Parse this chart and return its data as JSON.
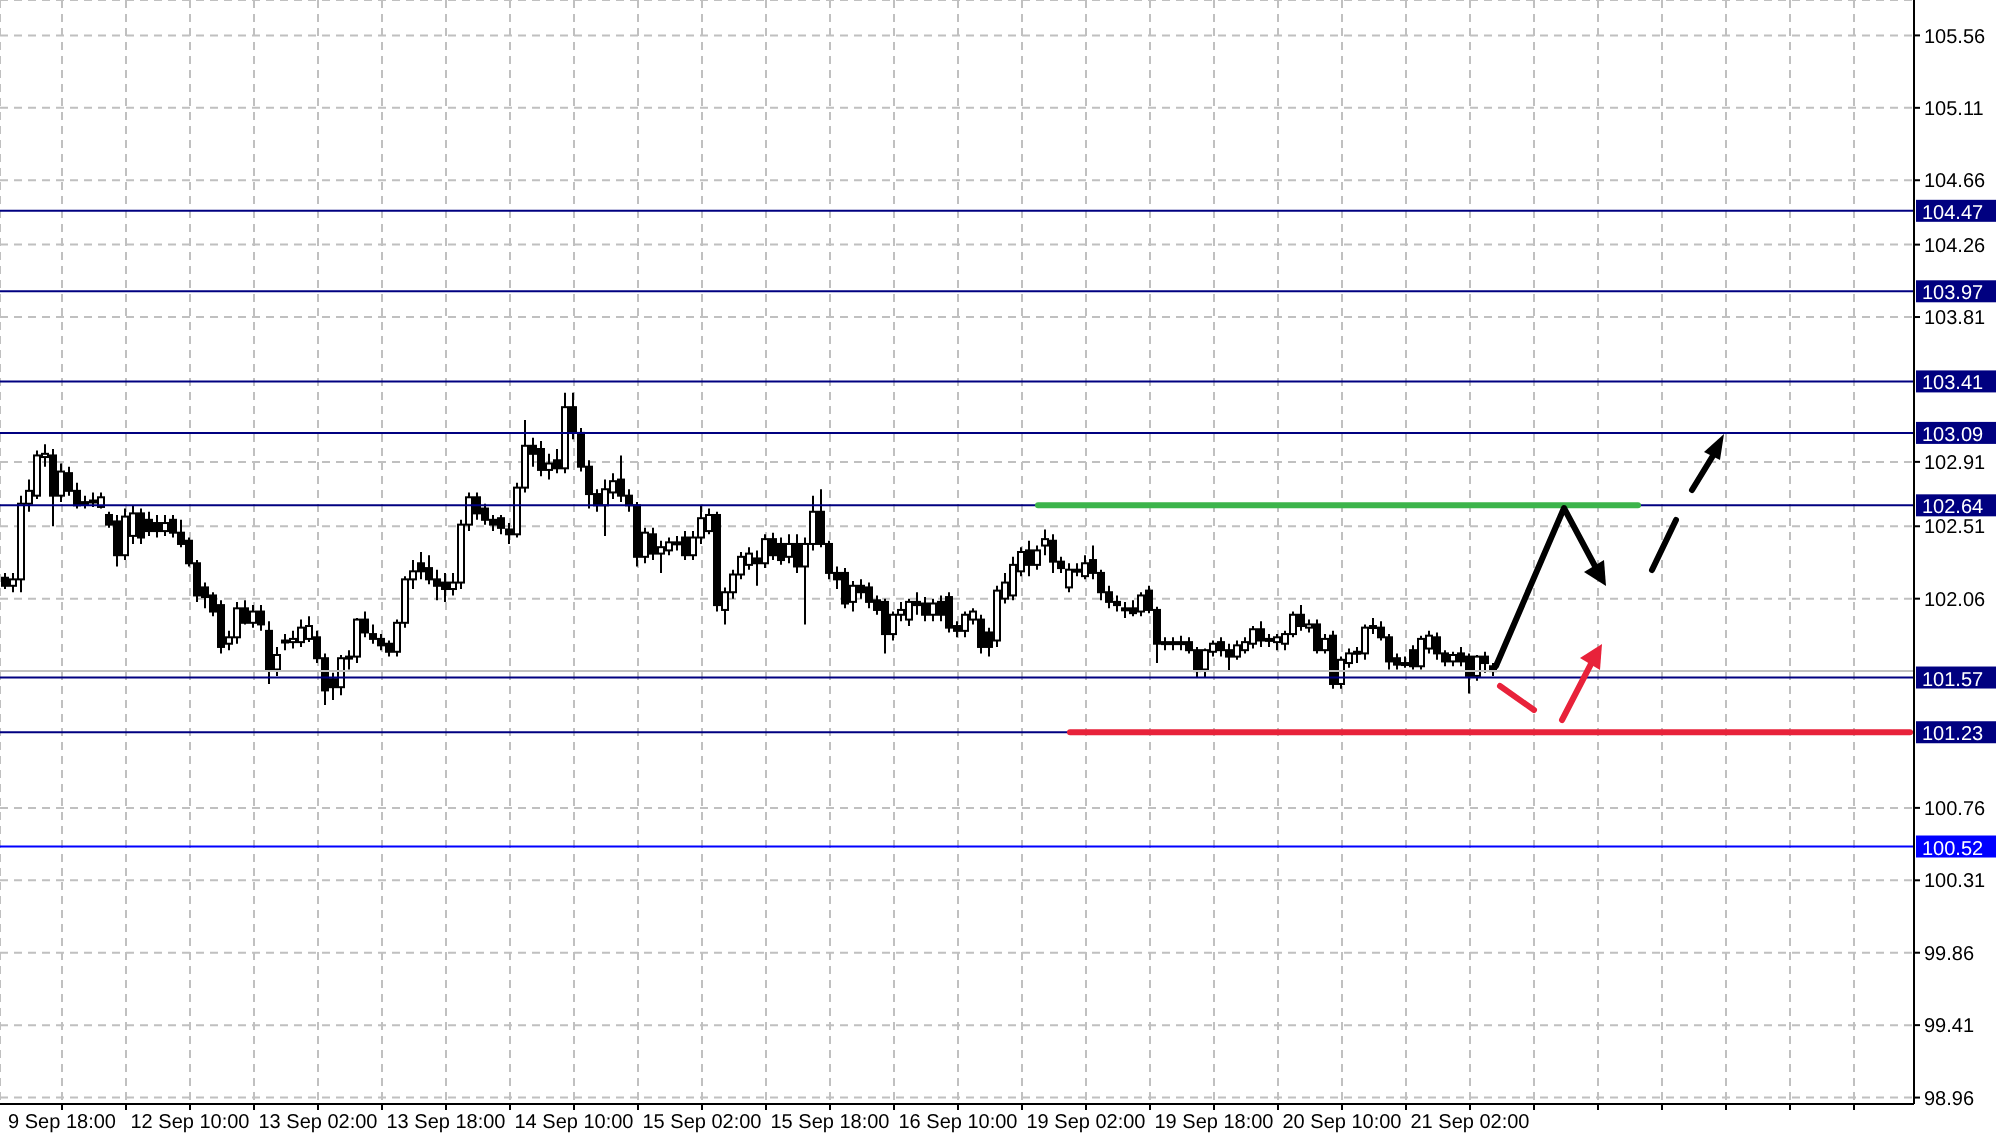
{
  "chart_data": {
    "type": "candlestick",
    "color": "#000000",
    "categories": [
      null,
      null,
      null,
      null,
      null,
      null,
      null,
      "9 Sep 18:00",
      null,
      null,
      null,
      null,
      null,
      null,
      null,
      null,
      null,
      null,
      null,
      null,
      null,
      null,
      null,
      "12 Sep 10:00",
      null,
      null,
      null,
      null,
      null,
      null,
      null,
      null,
      null,
      null,
      null,
      null,
      null,
      null,
      null,
      "13 Sep 02:00",
      null,
      null,
      null,
      null,
      null,
      null,
      null,
      null,
      null,
      null,
      null,
      null,
      null,
      null,
      null,
      "13 Sep 18:00",
      null,
      null,
      null,
      null,
      null,
      null,
      null,
      null,
      null,
      null,
      null,
      null,
      null,
      null,
      null,
      "14 Sep 10:00",
      null,
      null,
      null,
      null,
      null,
      null,
      null,
      null,
      null,
      null,
      null,
      null,
      null,
      null,
      null,
      "15 Sep 02:00",
      null,
      null,
      null,
      null,
      null,
      null,
      null,
      null,
      null,
      null,
      null,
      null,
      null,
      null,
      null,
      "15 Sep 18:00",
      null,
      null,
      null,
      null,
      null,
      null,
      null,
      null,
      null,
      null,
      null,
      null,
      null,
      null,
      null,
      "16 Sep 10:00",
      null,
      null,
      null,
      null,
      null,
      null,
      null,
      null,
      null,
      null,
      null,
      null,
      null,
      null,
      null,
      "19 Sep 02:00",
      null,
      null,
      null,
      null,
      null,
      null,
      null,
      null,
      null,
      null,
      null,
      null,
      null,
      null,
      null,
      "19 Sep 18:00",
      null,
      null,
      null,
      null,
      null,
      null,
      null,
      null,
      null,
      null,
      null,
      null,
      null,
      null,
      null,
      "20 Sep 10:00",
      null,
      null,
      null,
      null,
      null,
      null,
      null,
      null,
      null,
      null,
      null,
      null,
      null,
      null,
      null,
      "21 Sep 02:00",
      null,
      null,
      null,
      null,
      null,
      null,
      null,
      null,
      null,
      null,
      null,
      null,
      null,
      null,
      null,
      null,
      null,
      null,
      null,
      null,
      null,
      null,
      null,
      null,
      null,
      null,
      null,
      null,
      null,
      null,
      null,
      null,
      null,
      null,
      null,
      null,
      null,
      null,
      null,
      null,
      null,
      null,
      null,
      null,
      null,
      null,
      null,
      null,
      null,
      null,
      null,
      null,
      null,
      null,
      null
    ],
    "ohlc": [
      [
        102.19,
        102.22,
        102.12,
        102.14
      ],
      [
        102.14,
        102.22,
        102.1,
        102.18
      ],
      [
        102.18,
        102.7,
        102.1,
        102.65
      ],
      [
        102.65,
        102.8,
        102.6,
        102.73
      ],
      [
        102.7,
        102.98,
        102.68,
        102.95
      ],
      [
        102.94,
        103.02,
        102.88,
        102.96
      ],
      [
        102.95,
        102.99,
        102.51,
        102.7
      ],
      [
        102.7,
        102.9,
        102.66,
        102.85
      ],
      [
        102.84,
        102.88,
        102.7,
        102.73
      ],
      [
        102.73,
        102.78,
        102.62,
        102.64
      ],
      [
        102.66,
        102.7,
        102.62,
        102.65
      ],
      [
        102.66,
        102.72,
        102.63,
        102.67
      ],
      [
        102.63,
        102.72,
        102.62,
        102.69
      ],
      [
        102.58,
        102.6,
        102.5,
        102.52
      ],
      [
        102.54,
        102.58,
        102.26,
        102.33
      ],
      [
        102.33,
        102.62,
        102.3,
        102.57
      ],
      [
        102.45,
        102.64,
        102.4,
        102.59
      ],
      [
        102.59,
        102.62,
        102.4,
        102.44
      ],
      [
        102.55,
        102.6,
        102.45,
        102.48
      ],
      [
        102.53,
        102.58,
        102.44,
        102.48
      ],
      [
        102.48,
        102.58,
        102.45,
        102.53
      ],
      [
        102.55,
        102.58,
        102.44,
        102.47
      ],
      [
        102.47,
        102.55,
        102.38,
        102.4
      ],
      [
        102.42,
        102.44,
        102.26,
        102.28
      ],
      [
        102.28,
        102.3,
        102.04,
        102.08
      ],
      [
        102.13,
        102.16,
        102.0,
        102.07
      ],
      [
        102.08,
        102.1,
        101.95,
        101.98
      ],
      [
        102.02,
        102.05,
        101.72,
        101.76
      ],
      [
        101.78,
        101.86,
        101.74,
        101.82
      ],
      [
        101.82,
        102.04,
        101.78,
        102.0
      ],
      [
        102.0,
        102.05,
        101.9,
        101.91
      ],
      [
        101.91,
        102.02,
        101.88,
        101.98
      ],
      [
        101.98,
        102.02,
        101.86,
        101.9
      ],
      [
        101.86,
        101.92,
        101.53,
        101.62
      ],
      [
        101.62,
        101.76,
        101.58,
        101.71
      ],
      [
        101.8,
        101.84,
        101.74,
        101.79
      ],
      [
        101.79,
        101.86,
        101.75,
        101.81
      ],
      [
        101.79,
        101.93,
        101.76,
        101.88
      ],
      [
        101.81,
        101.95,
        101.79,
        101.89
      ],
      [
        101.82,
        101.86,
        101.66,
        101.69
      ],
      [
        101.69,
        101.72,
        101.4,
        101.49
      ],
      [
        101.56,
        101.6,
        101.43,
        101.51
      ],
      [
        101.51,
        101.71,
        101.46,
        101.69
      ],
      [
        101.69,
        101.74,
        101.62,
        101.7
      ],
      [
        101.7,
        101.94,
        101.66,
        101.93
      ],
      [
        101.93,
        101.98,
        101.82,
        101.85
      ],
      [
        101.84,
        101.9,
        101.78,
        101.81
      ],
      [
        101.81,
        101.84,
        101.74,
        101.77
      ],
      [
        101.78,
        101.8,
        101.7,
        101.73
      ],
      [
        101.73,
        101.93,
        101.7,
        101.91
      ],
      [
        101.91,
        102.2,
        101.88,
        102.18
      ],
      [
        102.18,
        102.3,
        102.12,
        102.23
      ],
      [
        102.28,
        102.35,
        102.18,
        102.23
      ],
      [
        102.25,
        102.33,
        102.15,
        102.18
      ],
      [
        102.18,
        102.24,
        102.05,
        102.14
      ],
      [
        102.16,
        102.22,
        102.04,
        102.12
      ],
      [
        102.12,
        102.22,
        102.08,
        102.16
      ],
      [
        102.16,
        102.55,
        102.12,
        102.52
      ],
      [
        102.52,
        102.72,
        102.48,
        102.69
      ],
      [
        102.69,
        102.72,
        102.55,
        102.59
      ],
      [
        102.62,
        102.65,
        102.52,
        102.55
      ],
      [
        102.55,
        102.58,
        102.48,
        102.52
      ],
      [
        102.56,
        102.58,
        102.46,
        102.5
      ],
      [
        102.49,
        102.53,
        102.4,
        102.46
      ],
      [
        102.46,
        102.78,
        102.44,
        102.75
      ],
      [
        102.75,
        103.17,
        102.72,
        103.01
      ],
      [
        103.01,
        103.06,
        102.88,
        102.96
      ],
      [
        102.99,
        103.04,
        102.82,
        102.86
      ],
      [
        102.86,
        102.96,
        102.8,
        102.9
      ],
      [
        102.92,
        102.99,
        102.84,
        102.87
      ],
      [
        102.87,
        103.34,
        102.84,
        103.25
      ],
      [
        103.25,
        103.34,
        103.05,
        103.09
      ],
      [
        103.09,
        103.12,
        102.85,
        102.88
      ],
      [
        102.88,
        102.92,
        102.62,
        102.71
      ],
      [
        102.71,
        102.74,
        102.6,
        102.64
      ],
      [
        102.64,
        102.8,
        102.45,
        102.74
      ],
      [
        102.72,
        102.84,
        102.68,
        102.79
      ],
      [
        102.8,
        102.95,
        102.66,
        102.7
      ],
      [
        102.7,
        102.74,
        102.6,
        102.64
      ],
      [
        102.64,
        102.66,
        102.26,
        102.32
      ],
      [
        102.32,
        102.5,
        102.28,
        102.47
      ],
      [
        102.46,
        102.5,
        102.3,
        102.34
      ],
      [
        102.34,
        102.42,
        102.22,
        102.38
      ],
      [
        102.36,
        102.44,
        102.33,
        102.41
      ],
      [
        102.4,
        102.45,
        102.36,
        102.41
      ],
      [
        102.44,
        102.48,
        102.3,
        102.33
      ],
      [
        102.33,
        102.48,
        102.3,
        102.44
      ],
      [
        102.44,
        102.64,
        102.4,
        102.56
      ],
      [
        102.48,
        102.62,
        102.46,
        102.58
      ],
      [
        102.58,
        102.6,
        101.98,
        102.02
      ],
      [
        101.99,
        102.13,
        101.9,
        102.1
      ],
      [
        102.1,
        102.24,
        102.06,
        102.21
      ],
      [
        102.21,
        102.35,
        102.18,
        102.32
      ],
      [
        102.27,
        102.38,
        102.24,
        102.34
      ],
      [
        102.31,
        102.36,
        102.14,
        102.28
      ],
      [
        102.28,
        102.46,
        102.25,
        102.43
      ],
      [
        102.43,
        102.47,
        102.3,
        102.33
      ],
      [
        102.4,
        102.44,
        102.27,
        102.3
      ],
      [
        102.32,
        102.46,
        102.28,
        102.4
      ],
      [
        102.4,
        102.46,
        102.22,
        102.26
      ],
      [
        102.26,
        102.44,
        101.9,
        102.4
      ],
      [
        102.4,
        102.7,
        102.36,
        102.6
      ],
      [
        102.6,
        102.74,
        102.38,
        102.4
      ],
      [
        102.4,
        102.42,
        102.18,
        102.22
      ],
      [
        102.22,
        102.26,
        102.12,
        102.18
      ],
      [
        102.22,
        102.25,
        102.0,
        102.03
      ],
      [
        102.04,
        102.17,
        101.98,
        102.14
      ],
      [
        102.14,
        102.18,
        102.06,
        102.1
      ],
      [
        102.13,
        102.16,
        102.0,
        102.04
      ],
      [
        102.05,
        102.08,
        101.96,
        101.99
      ],
      [
        102.04,
        102.06,
        101.72,
        101.84
      ],
      [
        101.84,
        101.98,
        101.8,
        101.96
      ],
      [
        101.96,
        102.04,
        101.92,
        101.99
      ],
      [
        101.93,
        102.06,
        101.89,
        102.04
      ],
      [
        102.04,
        102.1,
        101.96,
        102.02
      ],
      [
        102.03,
        102.07,
        101.92,
        101.96
      ],
      [
        101.96,
        102.06,
        101.92,
        102.03
      ],
      [
        102.04,
        102.08,
        101.92,
        101.96
      ],
      [
        102.07,
        102.1,
        101.85,
        101.88
      ],
      [
        101.89,
        101.92,
        101.82,
        101.86
      ],
      [
        101.86,
        101.98,
        101.82,
        101.96
      ],
      [
        101.93,
        102.0,
        101.9,
        101.98
      ],
      [
        101.93,
        101.96,
        101.72,
        101.76
      ],
      [
        101.85,
        101.88,
        101.7,
        101.76
      ],
      [
        101.8,
        102.14,
        101.76,
        102.11
      ],
      [
        102.06,
        102.22,
        102.03,
        102.16
      ],
      [
        102.08,
        102.32,
        102.05,
        102.27
      ],
      [
        102.23,
        102.38,
        102.2,
        102.35
      ],
      [
        102.36,
        102.42,
        102.2,
        102.27
      ],
      [
        102.27,
        102.39,
        102.24,
        102.36
      ],
      [
        102.39,
        102.49,
        102.33,
        102.43
      ],
      [
        102.42,
        102.46,
        102.22,
        102.29
      ],
      [
        102.29,
        102.32,
        102.22,
        102.25
      ],
      [
        102.13,
        102.28,
        102.1,
        102.24
      ],
      [
        102.24,
        102.28,
        102.2,
        102.24
      ],
      [
        102.2,
        102.33,
        102.18,
        102.28
      ],
      [
        102.3,
        102.39,
        102.18,
        102.22
      ],
      [
        102.22,
        102.24,
        102.05,
        102.1
      ],
      [
        102.1,
        102.14,
        102.0,
        102.04
      ],
      [
        102.04,
        102.08,
        101.98,
        102.02
      ],
      [
        102.0,
        102.04,
        101.94,
        101.99
      ],
      [
        102.0,
        102.05,
        101.95,
        101.97
      ],
      [
        101.98,
        102.1,
        101.95,
        102.08
      ],
      [
        102.11,
        102.14,
        101.97,
        101.99
      ],
      [
        101.99,
        102.01,
        101.66,
        101.78
      ],
      [
        101.78,
        101.82,
        101.74,
        101.79
      ],
      [
        101.79,
        101.82,
        101.74,
        101.78
      ],
      [
        101.78,
        101.83,
        101.74,
        101.79
      ],
      [
        101.79,
        101.82,
        101.72,
        101.74
      ],
      [
        101.74,
        101.76,
        101.57,
        101.61
      ],
      [
        101.62,
        101.75,
        101.57,
        101.74
      ],
      [
        101.73,
        101.8,
        101.7,
        101.78
      ],
      [
        101.79,
        101.82,
        101.7,
        101.74
      ],
      [
        101.74,
        101.78,
        101.61,
        101.7
      ],
      [
        101.7,
        101.8,
        101.68,
        101.77
      ],
      [
        101.74,
        101.82,
        101.72,
        101.79
      ],
      [
        101.78,
        101.89,
        101.75,
        101.87
      ],
      [
        101.87,
        101.92,
        101.76,
        101.8
      ],
      [
        101.8,
        101.84,
        101.76,
        101.81
      ],
      [
        101.79,
        101.84,
        101.74,
        101.82
      ],
      [
        101.78,
        101.86,
        101.74,
        101.84
      ],
      [
        101.84,
        101.98,
        101.82,
        101.96
      ],
      [
        101.96,
        102.02,
        101.86,
        101.89
      ],
      [
        101.88,
        101.93,
        101.85,
        101.9
      ],
      [
        101.9,
        101.93,
        101.72,
        101.74
      ],
      [
        101.74,
        101.84,
        101.72,
        101.81
      ],
      [
        101.83,
        101.86,
        101.5,
        101.53
      ],
      [
        101.53,
        101.7,
        101.5,
        101.68
      ],
      [
        101.66,
        101.75,
        101.63,
        101.72
      ],
      [
        101.72,
        101.76,
        101.66,
        101.73
      ],
      [
        101.72,
        101.9,
        101.68,
        101.88
      ],
      [
        101.88,
        101.94,
        101.84,
        101.89
      ],
      [
        101.88,
        101.92,
        101.8,
        101.82
      ],
      [
        101.82,
        101.84,
        101.62,
        101.67
      ],
      [
        101.69,
        101.72,
        101.62,
        101.65
      ],
      [
        101.66,
        101.7,
        101.63,
        101.66
      ],
      [
        101.74,
        101.77,
        101.62,
        101.64
      ],
      [
        101.64,
        101.83,
        101.62,
        101.81
      ],
      [
        101.75,
        101.86,
        101.72,
        101.83
      ],
      [
        101.82,
        101.85,
        101.68,
        101.72
      ],
      [
        101.72,
        101.74,
        101.64,
        101.67
      ],
      [
        101.67,
        101.73,
        101.64,
        101.71
      ],
      [
        101.72,
        101.76,
        101.64,
        101.67
      ],
      [
        101.7,
        101.72,
        101.47,
        101.58
      ],
      [
        101.58,
        101.71,
        101.55,
        101.7
      ],
      [
        101.7,
        101.73,
        101.6,
        101.66
      ],
      [
        101.64,
        101.66,
        101.58,
        101.61
      ],
      null,
      null,
      null,
      null,
      null,
      null,
      null,
      null,
      null,
      null,
      null,
      null,
      null,
      null,
      null,
      null,
      null,
      null,
      null,
      null,
      null,
      null,
      null,
      null,
      null,
      null,
      null,
      null,
      null,
      null,
      null,
      null,
      null,
      null,
      null,
      null,
      null,
      null,
      null,
      null,
      null,
      null,
      null,
      null,
      null,
      null,
      null,
      null,
      null,
      null,
      null,
      null
    ],
    "series": [
      {
        "type": "line",
        "color": "#3cb44b",
        "values": [
          null,
          null,
          null,
          null,
          null,
          null,
          null,
          null,
          null,
          null,
          null,
          null,
          null,
          null,
          null,
          null,
          null,
          null,
          null,
          null,
          null,
          null,
          null,
          null,
          null,
          null,
          null,
          null,
          null,
          null,
          null,
          null,
          null,
          null,
          null,
          null,
          null,
          null,
          null,
          null,
          null,
          null,
          null,
          null,
          null,
          null,
          null,
          null,
          null,
          null,
          null,
          null,
          null,
          null,
          null,
          null,
          null,
          null,
          null,
          null,
          null,
          null,
          null,
          null,
          null,
          null,
          null,
          null,
          null,
          null,
          null,
          null,
          null,
          null,
          null,
          null,
          null,
          null,
          null,
          null,
          null,
          null,
          null,
          null,
          null,
          null,
          null,
          null,
          null,
          null,
          null,
          null,
          null,
          null,
          null,
          null,
          null,
          null,
          null,
          null,
          null,
          null,
          null,
          null,
          null,
          null,
          null,
          null,
          null,
          null,
          null,
          null,
          null,
          null,
          null,
          null,
          null,
          null,
          null,
          null,
          null,
          null,
          null,
          null,
          null,
          null,
          null,
          null,
          null,
          102.64,
          null,
          null,
          null,
          null,
          null,
          null,
          null,
          null,
          null,
          null,
          null,
          null,
          null,
          null,
          null,
          null,
          null,
          null,
          null,
          null,
          null,
          null,
          null,
          null,
          null,
          null,
          null,
          null,
          null,
          null,
          null,
          null,
          null,
          null,
          null,
          null,
          null,
          null,
          null,
          null,
          null,
          null,
          null,
          null,
          null,
          null,
          null,
          null,
          null,
          null,
          null,
          null,
          null,
          null,
          null,
          null,
          null,
          null,
          null,
          null,
          null,
          null,
          null,
          null,
          null,
          null,
          null,
          null,
          null,
          null,
          null,
          null,
          null,
          null,
          102.64,
          null,
          null,
          null,
          null,
          null,
          null,
          null,
          null,
          null,
          null,
          null,
          null,
          null,
          null,
          null,
          null,
          null,
          null,
          null,
          null,
          null,
          null,
          null,
          null,
          null,
          null,
          null,
          null,
          null,
          null,
          null,
          null,
          null,
          null
        ]
      },
      {
        "type": "line",
        "color": "#e8223a",
        "values": [
          null,
          null,
          null,
          null,
          null,
          null,
          null,
          null,
          null,
          null,
          null,
          null,
          null,
          null,
          null,
          null,
          null,
          null,
          null,
          null,
          null,
          null,
          null,
          null,
          null,
          null,
          null,
          null,
          null,
          null,
          null,
          null,
          null,
          null,
          null,
          null,
          null,
          null,
          null,
          null,
          null,
          null,
          null,
          null,
          null,
          null,
          null,
          null,
          null,
          null,
          null,
          null,
          null,
          null,
          null,
          null,
          null,
          null,
          null,
          null,
          null,
          null,
          null,
          null,
          null,
          null,
          null,
          null,
          null,
          null,
          null,
          null,
          null,
          null,
          null,
          null,
          null,
          null,
          null,
          null,
          null,
          null,
          null,
          null,
          null,
          null,
          null,
          null,
          null,
          null,
          null,
          null,
          null,
          null,
          null,
          null,
          null,
          null,
          null,
          null,
          null,
          null,
          null,
          null,
          null,
          null,
          null,
          null,
          null,
          null,
          null,
          null,
          null,
          null,
          null,
          null,
          null,
          null,
          null,
          null,
          null,
          null,
          null,
          null,
          null,
          null,
          null,
          null,
          null,
          null,
          null,
          null,
          null,
          101.23,
          null,
          null,
          null,
          null,
          null,
          null,
          null,
          null,
          null,
          null,
          null,
          null,
          null,
          null,
          null,
          null,
          null,
          null,
          null,
          null,
          null,
          null,
          null,
          null,
          null,
          null,
          null,
          null,
          null,
          null,
          null,
          null,
          null,
          null,
          null,
          null,
          null,
          null,
          null,
          null,
          null,
          null,
          null,
          null,
          null,
          null,
          null,
          null,
          null,
          null,
          null,
          null,
          null,
          null,
          null,
          null,
          null,
          null,
          null,
          null,
          null,
          null,
          null,
          null,
          null,
          null,
          null,
          null,
          null,
          null,
          null,
          null,
          null,
          null,
          null,
          null,
          null,
          null,
          null,
          null,
          null,
          null,
          null,
          null,
          null,
          null,
          null,
          null,
          null,
          null,
          null,
          null,
          null,
          null,
          null,
          null,
          null,
          null,
          null,
          null,
          null,
          null,
          null,
          null,
          101.23
        ]
      }
    ],
    "ylim": [
      98.92,
      105.78
    ],
    "yticks": [
      105.56,
      105.11,
      104.66,
      104.26,
      103.81,
      102.91,
      102.51,
      102.06,
      100.76,
      100.31,
      99.86,
      99.41,
      98.96
    ],
    "grid": true,
    "ref_lines": [
      {
        "axis": "y",
        "value": 104.47,
        "label": "104.47",
        "color": "#000080"
      },
      {
        "axis": "y",
        "value": 103.97,
        "label": "103.97",
        "color": "#000080"
      },
      {
        "axis": "y",
        "value": 103.41,
        "label": "103.41",
        "color": "#000080"
      },
      {
        "axis": "y",
        "value": 103.09,
        "label": "103.09",
        "color": "#000080"
      },
      {
        "axis": "y",
        "value": 102.64,
        "label": "102.64",
        "color": "#000080"
      },
      {
        "axis": "y",
        "value": 101.61,
        "color": "#c0c0c0"
      },
      {
        "axis": "y",
        "value": 101.57,
        "label": "101.57",
        "color": "#000080"
      },
      {
        "axis": "y",
        "value": 101.23,
        "label": "101.23",
        "color": "#000080"
      },
      {
        "axis": "y",
        "value": 100.52,
        "label": "100.52",
        "color": "#0000ff"
      }
    ]
  }
}
